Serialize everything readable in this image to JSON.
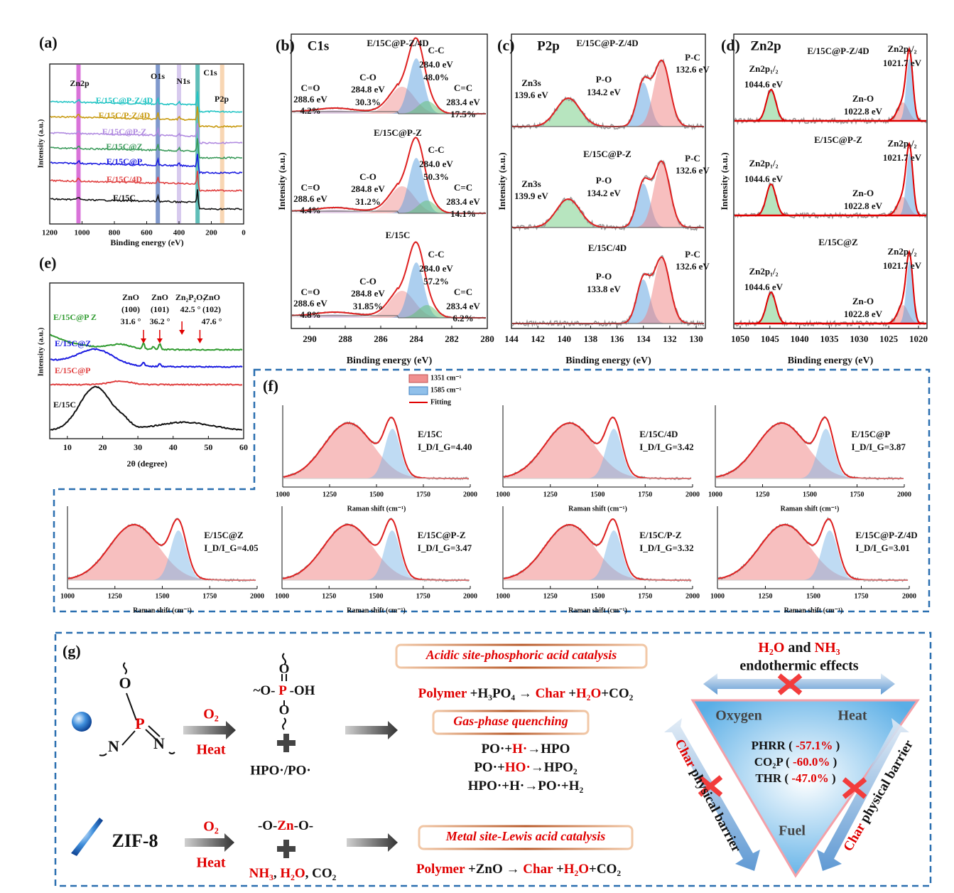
{
  "a": {
    "label": "(a)",
    "ylabel": "Intensity (a.u.)",
    "xlabel": "Binding energy (eV)",
    "xticks": [
      1200,
      1000,
      800,
      600,
      400,
      200,
      0
    ],
    "peaks": [
      "Zn2p",
      "O1s",
      "N1s",
      "C1s",
      "P2p"
    ],
    "samples": [
      "E/15C@P-Z/4D",
      "E/15C/P-Z/4D",
      "E/15C@P-Z",
      "E/15C@Z",
      "E/15C@P",
      "E/15C/4D",
      "E/15C"
    ]
  },
  "e": {
    "label": "(e)",
    "ylabel": "Intensity (a.u.)",
    "xlabel": "2θ (degree)",
    "xticks": [
      10,
      20,
      30,
      40,
      50,
      60
    ],
    "samples": [
      "E/15C@P Z",
      "E/15C@Z",
      "E/15C@P",
      "E/15C"
    ],
    "peaks": [
      [
        "ZnO",
        "(100)",
        "31.6 °"
      ],
      [
        "ZnO",
        "(101)",
        "36.2 °"
      ],
      [
        "Zn₂P₂O₇",
        "42.5 °"
      ],
      [
        "ZnO",
        "(102)",
        "47.6 °"
      ]
    ]
  },
  "b": {
    "label": "(b)",
    "element": "C1s",
    "ylabel": "Intensity (a.u.)",
    "xlabel": "Binding energy (eV)",
    "xticks": [
      290,
      288,
      286,
      284,
      282,
      280
    ],
    "subplots": [
      {
        "sample": "E/15C@P-Z/4D",
        "peaks": [
          [
            "C=O",
            "288.6 eV",
            "4.2%"
          ],
          [
            "C-O",
            "284.8 eV",
            "30.3%"
          ],
          [
            "C-C",
            "284.0 eV",
            "48.0%"
          ],
          [
            "C=C",
            "283.4 eV",
            "17.5%"
          ]
        ]
      },
      {
        "sample": "E/15C@P-Z",
        "peaks": [
          [
            "C=O",
            "288.6 eV",
            "4.4%"
          ],
          [
            "C-O",
            "284.8 eV",
            "31.2%"
          ],
          [
            "C-C",
            "284.0 eV",
            "50.3%"
          ],
          [
            "C=C",
            "283.4 eV",
            "14.1%"
          ]
        ]
      },
      {
        "sample": "E/15C",
        "peaks": [
          [
            "C=O",
            "288.6 eV",
            "4.8%"
          ],
          [
            "C-O",
            "284.8 eV",
            "31.85%"
          ],
          [
            "C-C",
            "284.0 eV",
            "57.2%"
          ],
          [
            "C=C",
            "283.4 eV",
            "6.2%"
          ]
        ]
      }
    ]
  },
  "c": {
    "label": "(c)",
    "element": "P2p",
    "ylabel": "Intensity (a.u.)",
    "xlabel": "Binding energy (eV)",
    "xticks": [
      144,
      142,
      140,
      138,
      136,
      134,
      132,
      130
    ],
    "subplots": [
      {
        "sample": "E/15C@P-Z/4D",
        "peaks": [
          [
            "Zn3s",
            "139.6 eV"
          ],
          [
            "P-O",
            "134.2 eV"
          ],
          [
            "P-C",
            "132.6 eV"
          ]
        ]
      },
      {
        "sample": "E/15C@P-Z",
        "peaks": [
          [
            "Zn3s",
            "139.9 eV"
          ],
          [
            "P-O",
            "134.2 eV"
          ],
          [
            "P-C",
            "132.6 eV"
          ]
        ]
      },
      {
        "sample": "E/15C/4D",
        "peaks": [
          [
            "P-O",
            "133.8 eV"
          ],
          [
            "P-C",
            "132.6 eV"
          ]
        ]
      }
    ]
  },
  "d": {
    "label": "(d)",
    "element": "Zn2p",
    "ylabel": "Intensity (a.u.)",
    "xlabel": "Binding energy (eV)",
    "xticks": [
      1050,
      1045,
      1040,
      1035,
      1030,
      1025,
      1020
    ],
    "subplots": [
      {
        "sample": "E/15C@P-Z/4D",
        "peaks": [
          [
            "Zn2p₁/₂",
            "1044.6 eV"
          ],
          [
            "Zn-O",
            "1022.8 eV"
          ],
          [
            "Zn2p₃/₂",
            "1021.7 eV"
          ]
        ]
      },
      {
        "sample": "E/15C@P-Z",
        "peaks": [
          [
            "Zn2p₁/₂",
            "1044.6 eV"
          ],
          [
            "Zn-O",
            "1022.8 eV"
          ],
          [
            "Zn2p₃/₂",
            "1021.7 eV"
          ]
        ]
      },
      {
        "sample": "E/15C@Z",
        "peaks": [
          [
            "Zn2p₁/₂",
            "1044.6 eV"
          ],
          [
            "Zn-O",
            "1022.8 eV"
          ],
          [
            "Zn2p₃/₂",
            "1021.7 eV"
          ]
        ]
      }
    ]
  },
  "f": {
    "label": "(f)",
    "legend": [
      "1351 cm⁻¹",
      "1585 cm⁻¹",
      "Fitting"
    ],
    "xlabel": "Raman shift (cm⁻¹)",
    "xticks": [
      1000,
      1250,
      1500,
      1750,
      2000
    ],
    "plots": [
      {
        "sample": "E/15C",
        "ratio": "I_D/I_G=4.40"
      },
      {
        "sample": "E/15C/4D",
        "ratio": "I_D/I_G=3.42"
      },
      {
        "sample": "E/15C@P",
        "ratio": "I_D/I_G=3.87"
      },
      {
        "sample": "E/15C@Z",
        "ratio": "I_D/I_G=4.05"
      },
      {
        "sample": "E/15C@P-Z",
        "ratio": "I_D/I_G=3.47"
      },
      {
        "sample": "E/15C/P-Z",
        "ratio": "I_D/I_G=3.32"
      },
      {
        "sample": "E/15C@P-Z/4D",
        "ratio": "I_D/I_G=3.01"
      }
    ]
  },
  "g": {
    "label": "(g)",
    "molecule": [
      "O",
      "P",
      "N",
      "N"
    ],
    "o2": "O₂",
    "heat": "Heat",
    "phosphate": [
      {
        "text": "~O- ",
        "color": "#111"
      },
      {
        "text": "P",
        "color": "#e00000"
      },
      {
        "text": " -OH",
        "color": "#111"
      }
    ],
    "phosphate_o": [
      "O",
      "O"
    ],
    "radicals": "HPO·/PO·",
    "zif": "ZIF-8",
    "zn_chain": [
      {
        "text": "-O-",
        "color": "#111"
      },
      {
        "text": "Zn",
        "color": "#e00000"
      },
      {
        "text": "-O-",
        "color": "#111"
      }
    ],
    "gases": [
      {
        "text": "NH₃",
        "color": "#e00000"
      },
      {
        "text": ", ",
        "color": "#111"
      },
      {
        "text": "H₂O",
        "color": "#e00000"
      },
      {
        "text": ", CO₂",
        "color": "#111"
      }
    ],
    "box1": "Acidic site-phosphoric acid catalysis",
    "eq1": [
      {
        "text": "Polymer",
        "color": "#e00000"
      },
      {
        "text": " +H₃PO₄ → ",
        "color": "#111"
      },
      {
        "text": "Char",
        "color": "#e00000"
      },
      {
        "text": " +",
        "color": "#111"
      },
      {
        "text": "H₂O",
        "color": "#e00000"
      },
      {
        "text": "+CO₂",
        "color": "#111"
      }
    ],
    "box2": "Gas-phase quenching",
    "reactions": [
      [
        {
          "text": "PO·+",
          "color": "#111"
        },
        {
          "text": "H·",
          "color": "#e00000"
        },
        {
          "text": "→HPO",
          "color": "#111"
        }
      ],
      [
        {
          "text": "PO·+",
          "color": "#111"
        },
        {
          "text": "HO·",
          "color": "#e00000"
        },
        {
          "text": "→HPO₂",
          "color": "#111"
        }
      ],
      [
        {
          "text": "HPO·+H·→PO·+H₂",
          "color": "#111"
        }
      ]
    ],
    "box3": "Metal site-Lewis acid catalysis",
    "eq2": [
      {
        "text": "Polymer",
        "color": "#e00000"
      },
      {
        "text": " +ZnO → ",
        "color": "#111"
      },
      {
        "text": "Char",
        "color": "#e00000"
      },
      {
        "text": " +",
        "color": "#111"
      },
      {
        "text": "H₂O",
        "color": "#e00000"
      },
      {
        "text": "+CO₂",
        "color": "#111"
      }
    ],
    "top": [
      {
        "text": "H₂O",
        "color": "#e00000"
      },
      {
        "text": " and ",
        "color": "#111"
      },
      {
        "text": "NH₃",
        "color": "#e00000"
      }
    ],
    "top2": "endothermic effects",
    "oxygen": "Oxygen",
    "heat2": "Heat",
    "fuel": "Fuel",
    "results": [
      [
        {
          "text": "PHRR ( ",
          "color": "#111"
        },
        {
          "text": "-57.1%",
          "color": "#e00000"
        },
        {
          "text": " )",
          "color": "#111"
        }
      ],
      [
        {
          "text": "CO₂P ( ",
          "color": "#111"
        },
        {
          "text": "-60.0%",
          "color": "#e00000"
        },
        {
          "text": " )",
          "color": "#111"
        }
      ],
      [
        {
          "text": "THR ( ",
          "color": "#111"
        },
        {
          "text": "-47.0%",
          "color": "#e00000"
        },
        {
          "text": " )",
          "color": "#111"
        }
      ]
    ],
    "barrier_left": [
      {
        "text": "Char",
        "color": "#e00000"
      },
      {
        "text": " physical barrier",
        "color": "#111"
      }
    ],
    "barrier_right": [
      {
        "text": "Char",
        "color": "#e00000"
      },
      {
        "text": " physical barrier",
        "color": "#111"
      }
    ]
  }
}
